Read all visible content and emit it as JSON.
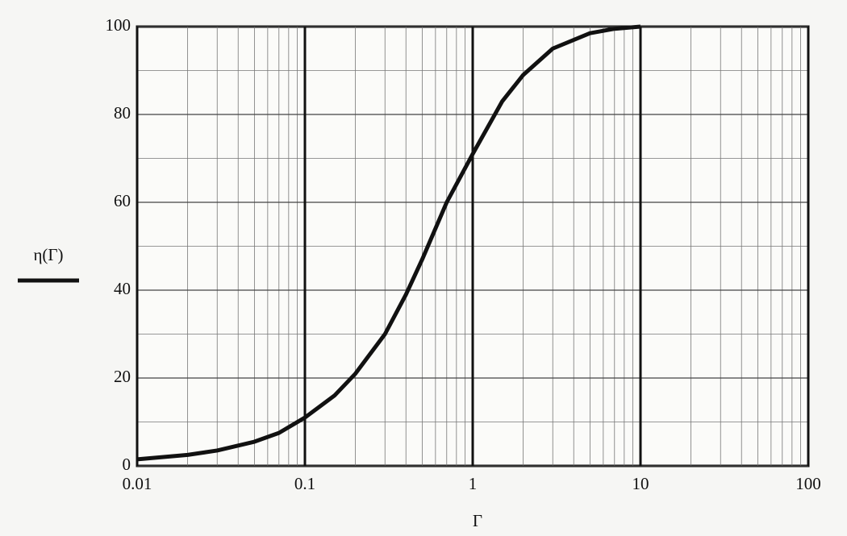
{
  "chart_data": {
    "type": "line",
    "x_label": "Γ",
    "log_x": true,
    "grid": true,
    "minor_grid": true,
    "x": [
      0.01,
      0.02,
      0.03,
      0.05,
      0.07,
      0.1,
      0.15,
      0.2,
      0.3,
      0.4,
      0.5,
      0.7,
      1,
      1.5,
      2,
      3,
      5,
      7,
      10
    ],
    "series": [
      {
        "name": "η(Γ)",
        "color": "#111111",
        "values": [
          1.5,
          2.5,
          3.5,
          5.5,
          7.5,
          11,
          16,
          21,
          30,
          39,
          47,
          60,
          71,
          83,
          89,
          95,
          98.5,
          99.5,
          100
        ]
      }
    ],
    "xlim": [
      0.01,
      100
    ],
    "xticks": [
      0.01,
      0.1,
      1,
      10,
      100
    ],
    "ylim": [
      0,
      100
    ],
    "yticks": [
      0,
      20,
      40,
      60,
      80,
      100
    ],
    "legend": "left"
  }
}
